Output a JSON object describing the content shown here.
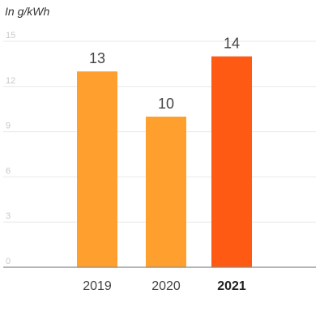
{
  "chart_data": {
    "type": "bar",
    "ylabel": "In g/kWh",
    "categories": [
      "2019",
      "2020",
      "2021"
    ],
    "values": [
      13,
      10,
      14
    ],
    "highlight_category": "2021",
    "ylim": [
      0,
      15
    ],
    "yticks": [
      0,
      3,
      6,
      9,
      12,
      15
    ],
    "grid": true,
    "legend": "none",
    "colors": {
      "bar": "#FFA02E",
      "bar_highlight": "#FF5A14",
      "grid": "#E8E8E8",
      "axis": "#888888",
      "tick_text": "#C8C8C8",
      "label_text": "#444444",
      "highlight_text": "#222222"
    }
  }
}
